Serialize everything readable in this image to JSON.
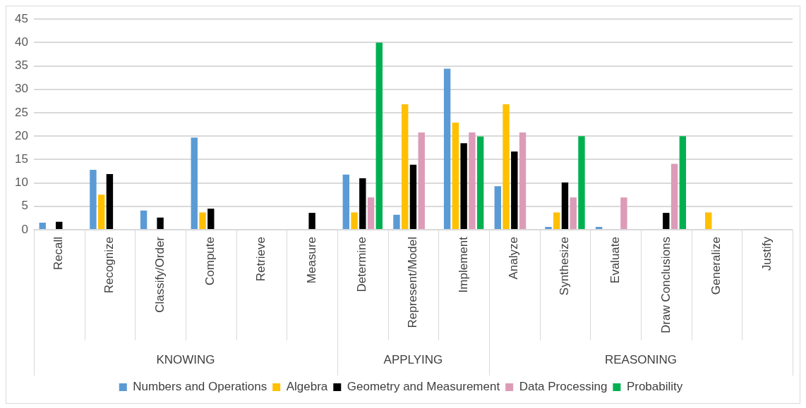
{
  "chart_data": {
    "type": "bar",
    "categories": [
      "Recall",
      "Recognize",
      "Classify/Order",
      "Compute",
      "Retrieve",
      "Measure",
      "Determine",
      "Represent/Model",
      "Implement",
      "Analyze",
      "Synthesize",
      "Evaluate",
      "Draw Conclusions",
      "Generalize",
      "Justify"
    ],
    "series": [
      {
        "name": "Numbers and Operations",
        "color": "#5b9bd5",
        "values": [
          1.5,
          12.8,
          4.1,
          19.7,
          0,
          0,
          11.8,
          3.2,
          34.4,
          9.3,
          0.6,
          0.6,
          0,
          0,
          0
        ]
      },
      {
        "name": "Algebra",
        "color": "#ffc000",
        "values": [
          0,
          7.5,
          0,
          3.7,
          0,
          0,
          3.7,
          26.8,
          22.9,
          26.8,
          3.7,
          0,
          0,
          3.7,
          0
        ]
      },
      {
        "name": "Geometry and Measurement",
        "color": "#000000",
        "values": [
          1.7,
          11.9,
          2.6,
          4.5,
          0,
          3.6,
          11.0,
          13.9,
          18.5,
          16.7,
          10.1,
          0,
          3.6,
          0,
          0
        ]
      },
      {
        "name": "Data Processing",
        "color": "#dc9cb8",
        "values": [
          0,
          0,
          0,
          0,
          0,
          0,
          6.9,
          20.8,
          20.8,
          20.8,
          6.9,
          6.9,
          14.1,
          0,
          0
        ]
      },
      {
        "name": "Probability",
        "color": "#00b050",
        "values": [
          0,
          0,
          0,
          0,
          0,
          0,
          40,
          0,
          19.9,
          0,
          20,
          0,
          20,
          0,
          0
        ]
      }
    ],
    "ylim": [
      0,
      45
    ],
    "yticks": [
      0,
      5,
      10,
      15,
      20,
      25,
      30,
      35,
      40,
      45
    ],
    "grid": "y",
    "legend": "bottom",
    "annotations": [
      "KNOWING",
      "APPLYING",
      "REASONING"
    ]
  }
}
